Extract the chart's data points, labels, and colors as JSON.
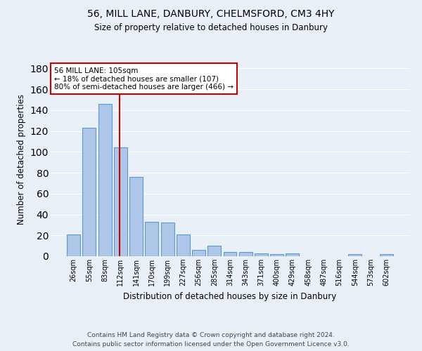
{
  "title1": "56, MILL LANE, DANBURY, CHELMSFORD, CM3 4HY",
  "title2": "Size of property relative to detached houses in Danbury",
  "xlabel": "Distribution of detached houses by size in Danbury",
  "ylabel": "Number of detached properties",
  "categories": [
    "26sqm",
    "55sqm",
    "83sqm",
    "112sqm",
    "141sqm",
    "170sqm",
    "199sqm",
    "227sqm",
    "256sqm",
    "285sqm",
    "314sqm",
    "343sqm",
    "371sqm",
    "400sqm",
    "429sqm",
    "458sqm",
    "487sqm",
    "516sqm",
    "544sqm",
    "573sqm",
    "602sqm"
  ],
  "values": [
    21,
    123,
    146,
    104,
    76,
    33,
    32,
    21,
    6,
    10,
    4,
    4,
    3,
    2,
    3,
    0,
    0,
    0,
    2,
    0,
    2
  ],
  "bar_color": "#aec6e8",
  "bar_edge_color": "#5b9bd5",
  "bg_color": "#eaf0f8",
  "grid_color": "#ffffff",
  "vline_color": "#cc0000",
  "annotation_text": "56 MILL LANE: 105sqm\n← 18% of detached houses are smaller (107)\n80% of semi-detached houses are larger (466) →",
  "annotation_box_color": "#ffffff",
  "annotation_box_edge": "#cc0000",
  "ylim": [
    0,
    185
  ],
  "yticks": [
    0,
    20,
    40,
    60,
    80,
    100,
    120,
    140,
    160,
    180
  ],
  "footnote1": "Contains HM Land Registry data © Crown copyright and database right 2024.",
  "footnote2": "Contains public sector information licensed under the Open Government Licence v3.0."
}
